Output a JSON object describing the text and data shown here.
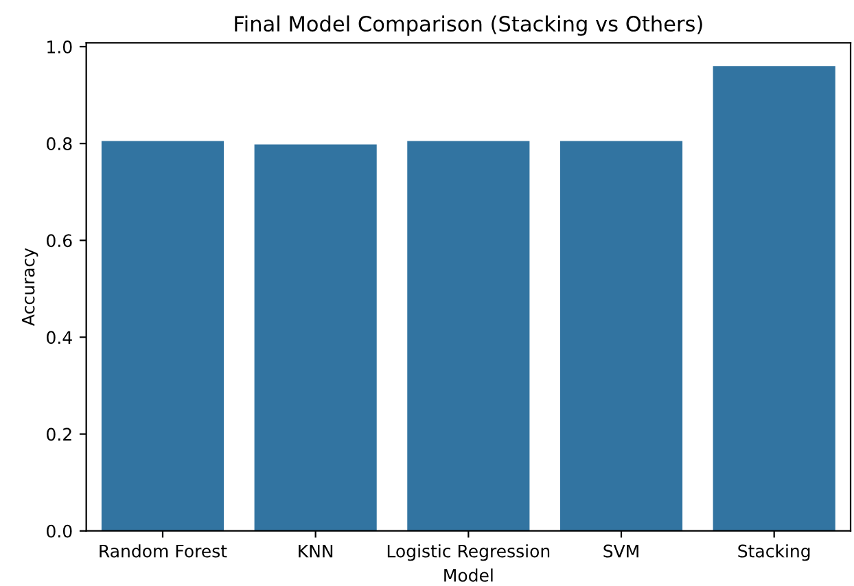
{
  "chart_data": {
    "type": "bar",
    "title": "Final Model Comparison (Stacking vs Others)",
    "xlabel": "Model",
    "ylabel": "Accuracy",
    "categories": [
      "Random Forest",
      "KNN",
      "Logistic Regression",
      "SVM",
      "Stacking"
    ],
    "values": [
      0.805,
      0.798,
      0.805,
      0.805,
      0.96
    ],
    "color": "#3274a1",
    "ylim": [
      0,
      1.008
    ],
    "yticks": [
      {
        "value": 0,
        "label": "0.0"
      },
      0.2,
      0.4,
      0.6,
      0.8,
      {
        "value": 1,
        "label": "1.0"
      }
    ],
    "grid": false,
    "legend": false
  }
}
